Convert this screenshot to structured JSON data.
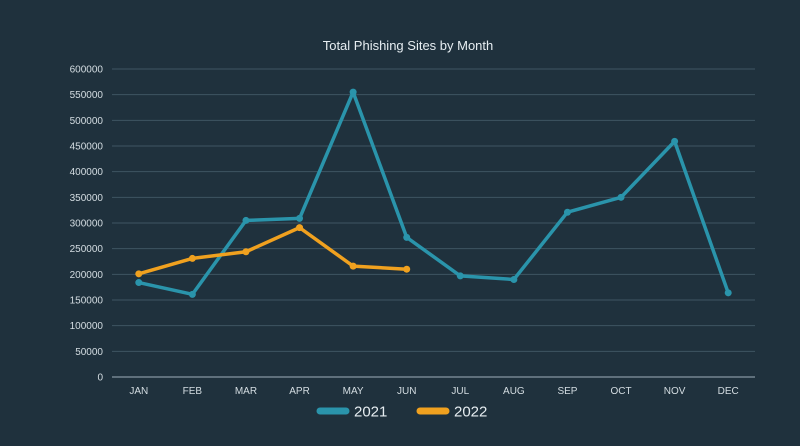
{
  "chart_data": {
    "type": "line",
    "title": "Total Phishing Sites by Month",
    "xlabel": "",
    "ylabel": "",
    "categories": [
      "JAN",
      "FEB",
      "MAR",
      "APR",
      "MAY",
      "JUN",
      "JUL",
      "AUG",
      "SEP",
      "OCT",
      "NOV",
      "DEC"
    ],
    "ylim": [
      0,
      600000
    ],
    "yticks": [
      0,
      50000,
      100000,
      150000,
      200000,
      250000,
      300000,
      350000,
      400000,
      450000,
      500000,
      550000,
      600000
    ],
    "grid": true,
    "legend_position": "bottom",
    "series": [
      {
        "name": "2021",
        "color": "#2a94ab",
        "values": [
          184000,
          161000,
          305000,
          309000,
          555000,
          272000,
          197000,
          190000,
          321000,
          350000,
          459000,
          164000
        ]
      },
      {
        "name": "2022",
        "color": "#f0a11f",
        "values": [
          201000,
          231000,
          244000,
          291000,
          216000,
          210000,
          null,
          null,
          null,
          null,
          null,
          null
        ]
      }
    ]
  }
}
